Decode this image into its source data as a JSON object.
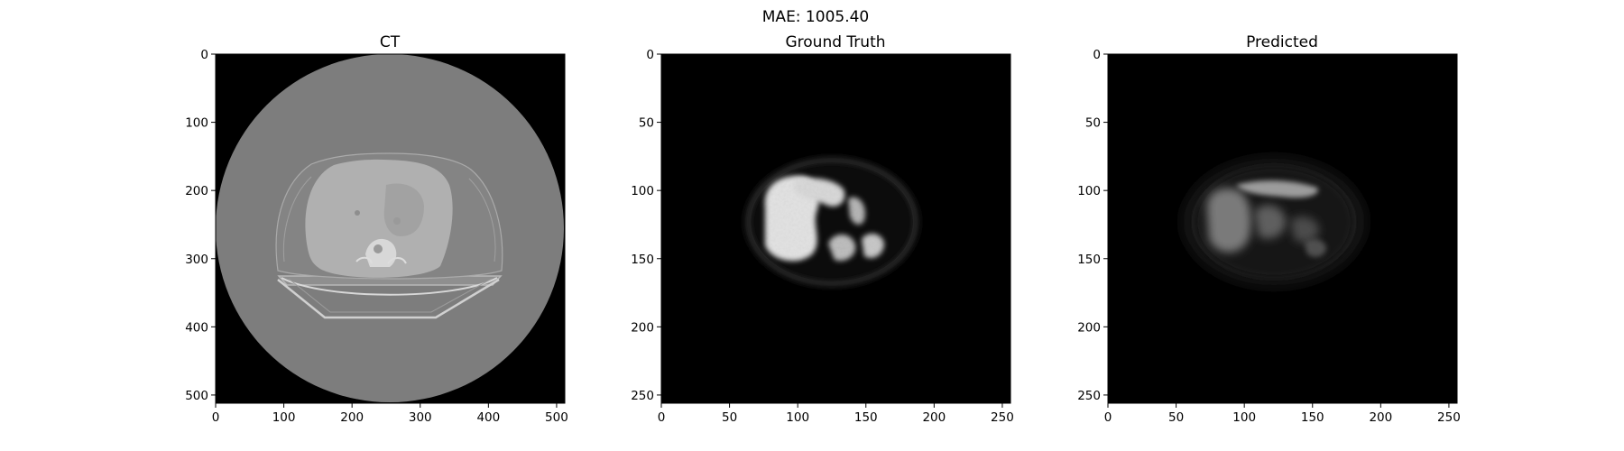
{
  "figure": {
    "suptitle": "MAE: 1005.40"
  },
  "panels": [
    {
      "id": "ct",
      "title": "CT",
      "image_size": 512,
      "xticks": [
        "0",
        "100",
        "200",
        "300",
        "400",
        "500"
      ],
      "yticks": [
        "0",
        "100",
        "200",
        "300",
        "400",
        "500"
      ],
      "tick_step": 100
    },
    {
      "id": "ground-truth",
      "title": "Ground Truth",
      "image_size": 256,
      "xticks": [
        "0",
        "50",
        "100",
        "150",
        "200",
        "250"
      ],
      "yticks": [
        "0",
        "50",
        "100",
        "150",
        "200",
        "250"
      ],
      "tick_step": 50
    },
    {
      "id": "predicted",
      "title": "Predicted",
      "image_size": 256,
      "xticks": [
        "0",
        "50",
        "100",
        "150",
        "200",
        "250"
      ],
      "yticks": [
        "0",
        "50",
        "100",
        "150",
        "200",
        "250"
      ],
      "tick_step": 50
    }
  ],
  "colors": {
    "background": "#ffffff",
    "image_background": "#000000",
    "ct_fov": "#7d7d7d",
    "ct_body": "#a9a9a9",
    "ct_liver": "#b4b4b4",
    "ct_bone": "#dcdcdc",
    "pet_glow": "#ffffff"
  }
}
